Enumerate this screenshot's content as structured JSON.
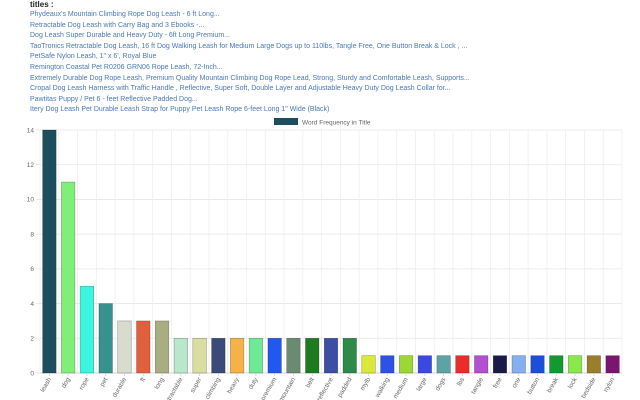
{
  "titles_heading": "titles :",
  "titles": [
    "Phydeaux's Mountain Climbing Rope Dog Leash - 6 ft Long...",
    "Retractable Dog Leash with Carry Bag and 3 Ebooks -...",
    "Dog Leash Super Durable and Heavy Duty - 6ft Long Premium...",
    "TaoTronics Retractable Dog Leash, 16 ft Dog Walking Leash for Medium Large Dogs up to 110lbs, Tangle Free, One Button Break & Lock , ...",
    "PetSafe Nylon Leash, 1\" x 6', Royal Blue",
    "Remington Coastal Pet R0206 GRN06 Rope Leash, 72-Inch...",
    "Extremely Durable Dog Rope Leash, Premium Quality Mountain Climbing Dog Rope Lead, Strong, Sturdy and Comfortable Leash, Supports...",
    "Cropal Dog Leash Harness with Traffic Handle , Reflective, Super Soft, Double Layer and Adjustable Heavy Duty Dog Leash Collar for...",
    "Pawtitas Puppy / Pet 6 - feet Reflective Padded Dog...",
    "Itery Dog Leash Pet Durable Leash Strap for Puppy Pet Leash Rope 6-feet Long 1\" Wide (Black)"
  ],
  "chart_data": {
    "type": "bar",
    "legend_position": "top",
    "grid": true,
    "ylim": [
      0,
      14
    ],
    "yticks": [
      0,
      2,
      4,
      6,
      8,
      10,
      12,
      14
    ],
    "categories": [
      "leash",
      "dog",
      "rope",
      "pet",
      "durable",
      "ft",
      "long",
      "retractable",
      "super",
      "climbing",
      "heavy",
      "duty",
      "premium",
      "mountain",
      "belt",
      "reflective",
      "padded",
      "mylb",
      "walking",
      "medium",
      "large",
      "dogs",
      "lbs",
      "tangle",
      "free",
      "one",
      "button",
      "break",
      "lock",
      "bedside",
      "nylon"
    ],
    "series": [
      {
        "name": "Word Frequency in Title",
        "values": [
          14,
          11,
          5,
          4,
          3,
          3,
          3,
          2,
          2,
          2,
          2,
          2,
          2,
          2,
          2,
          2,
          2,
          1,
          1,
          1,
          1,
          1,
          1,
          1,
          1,
          1,
          1,
          1,
          1,
          1,
          1
        ],
        "colors": [
          "#1d4e5e",
          "#7ef07a",
          "#3af5e0",
          "#37918c",
          "#d8dccf",
          "#e0603e",
          "#a9ad80",
          "#b8e7cb",
          "#d9dd9e",
          "#3a4a7a",
          "#f4b247",
          "#6eea94",
          "#2358f0",
          "#6a8a72",
          "#1f7b22",
          "#3f4ea5",
          "#2e8a4a",
          "#d9e83a",
          "#2e52e6",
          "#9bd836",
          "#3a4ae0",
          "#5da2a5",
          "#ec2b2b",
          "#b34fd0",
          "#1a1a4a",
          "#86aff0",
          "#1d4ed8",
          "#129a31",
          "#89e84a",
          "#9a7e2b",
          "#7a1670"
        ]
      }
    ]
  }
}
